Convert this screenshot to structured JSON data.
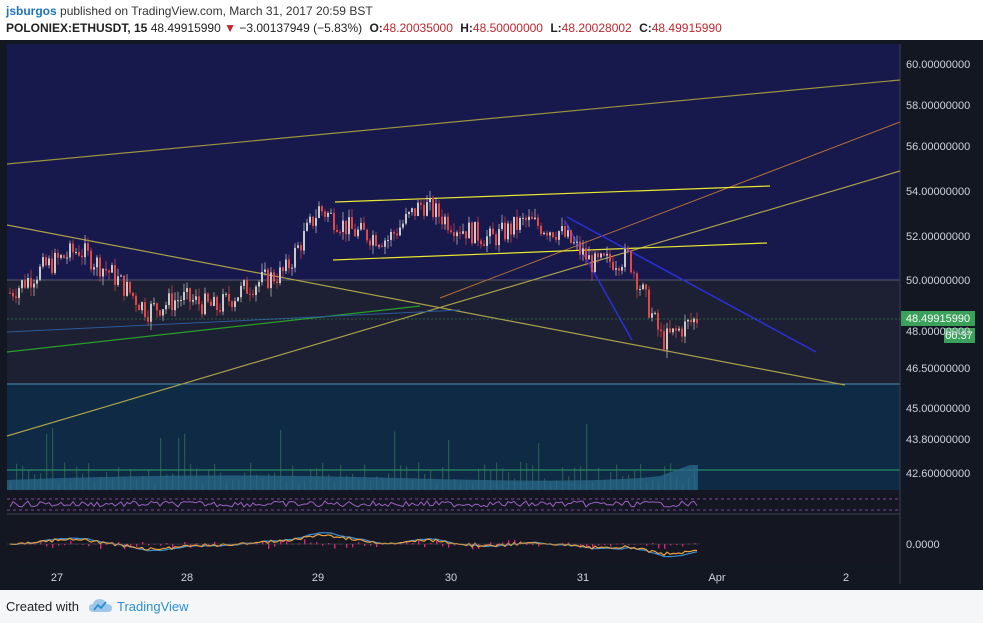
{
  "header": {
    "author": "jsburgos",
    "published_text": "published on TradingView.com, March 31, 2017 20:59 BST",
    "symbol": "POLONIEX:ETHUSDT, 15",
    "last": "48.49915990",
    "change_arrow": "▼",
    "change": "−3.00137949 (−5.83%)",
    "o_label": "O:",
    "o_value": "48.20035000",
    "h_label": "H:",
    "h_value": "48.50000000",
    "l_label": "L:",
    "l_value": "48.20028002",
    "c_label": "C:",
    "c_value": "48.49915990"
  },
  "price_axis": {
    "ticks": [
      "60.00000000",
      "58.00000000",
      "56.00000000",
      "54.00000000",
      "52.00000000",
      "50.00000000",
      "48.00000000",
      "46.50000000",
      "45.00000000",
      "43.80000000",
      "42.60000000"
    ],
    "last_price_label": "48.49915990",
    "countdown_label": "00:37",
    "oscillator_tick": "0.0000"
  },
  "time_axis": {
    "labels": [
      "27",
      "28",
      "29",
      "30",
      "31",
      "Apr",
      "2"
    ]
  },
  "footer": {
    "created_with": "Created with",
    "brand": "TradingView"
  },
  "colors": {
    "chart_bg": "#131722",
    "upper_bg": "#17184c",
    "candle_up": "#c8c8c8",
    "candle_down": "#e04848",
    "yellow_line": "#d8d830",
    "olive_line": "#a8a04a",
    "blue_line": "#2b2fd8",
    "green_line": "#28a028",
    "orange_line": "#b0703a",
    "volume": "#2a6a8a",
    "last_price_badge": "#3aa05a"
  },
  "chart_data": [
    {
      "type": "candlestick",
      "title": "POLONIEX:ETHUSDT, 15",
      "x_axis_labels": [
        "27",
        "28",
        "29",
        "30",
        "31",
        "Apr",
        "2"
      ],
      "y_axis_ticks": [
        60.0,
        58.0,
        56.0,
        54.0,
        52.0,
        50.0,
        48.0,
        46.5,
        45.0,
        43.8,
        42.6
      ],
      "ylim": [
        42.0,
        61.0
      ],
      "last_price": 48.4991599,
      "session_closes": [
        {
          "x": "27 00:00",
          "y": 49.5
        },
        {
          "x": "27 06:00",
          "y": 50.5
        },
        {
          "x": "27 12:00",
          "y": 51.2
        },
        {
          "x": "27 18:00",
          "y": 50.2
        },
        {
          "x": "28 00:00",
          "y": 48.8
        },
        {
          "x": "28 06:00",
          "y": 49.3
        },
        {
          "x": "28 12:00",
          "y": 48.9
        },
        {
          "x": "28 18:00",
          "y": 49.8
        },
        {
          "x": "29 00:00",
          "y": 50.3
        },
        {
          "x": "29 06:00",
          "y": 52.8
        },
        {
          "x": "29 12:00",
          "y": 51.9
        },
        {
          "x": "29 18:00",
          "y": 51.6
        },
        {
          "x": "30 00:00",
          "y": 53.0
        },
        {
          "x": "30 06:00",
          "y": 52.1
        },
        {
          "x": "30 12:00",
          "y": 51.6
        },
        {
          "x": "30 18:00",
          "y": 52.3
        },
        {
          "x": "31 00:00",
          "y": 51.9
        },
        {
          "x": "31 06:00",
          "y": 50.6
        },
        {
          "x": "31 12:00",
          "y": 50.9
        },
        {
          "x": "31 18:00",
          "y": 47.6
        },
        {
          "x": "31 20:59",
          "y": 48.5
        }
      ]
    }
  ]
}
